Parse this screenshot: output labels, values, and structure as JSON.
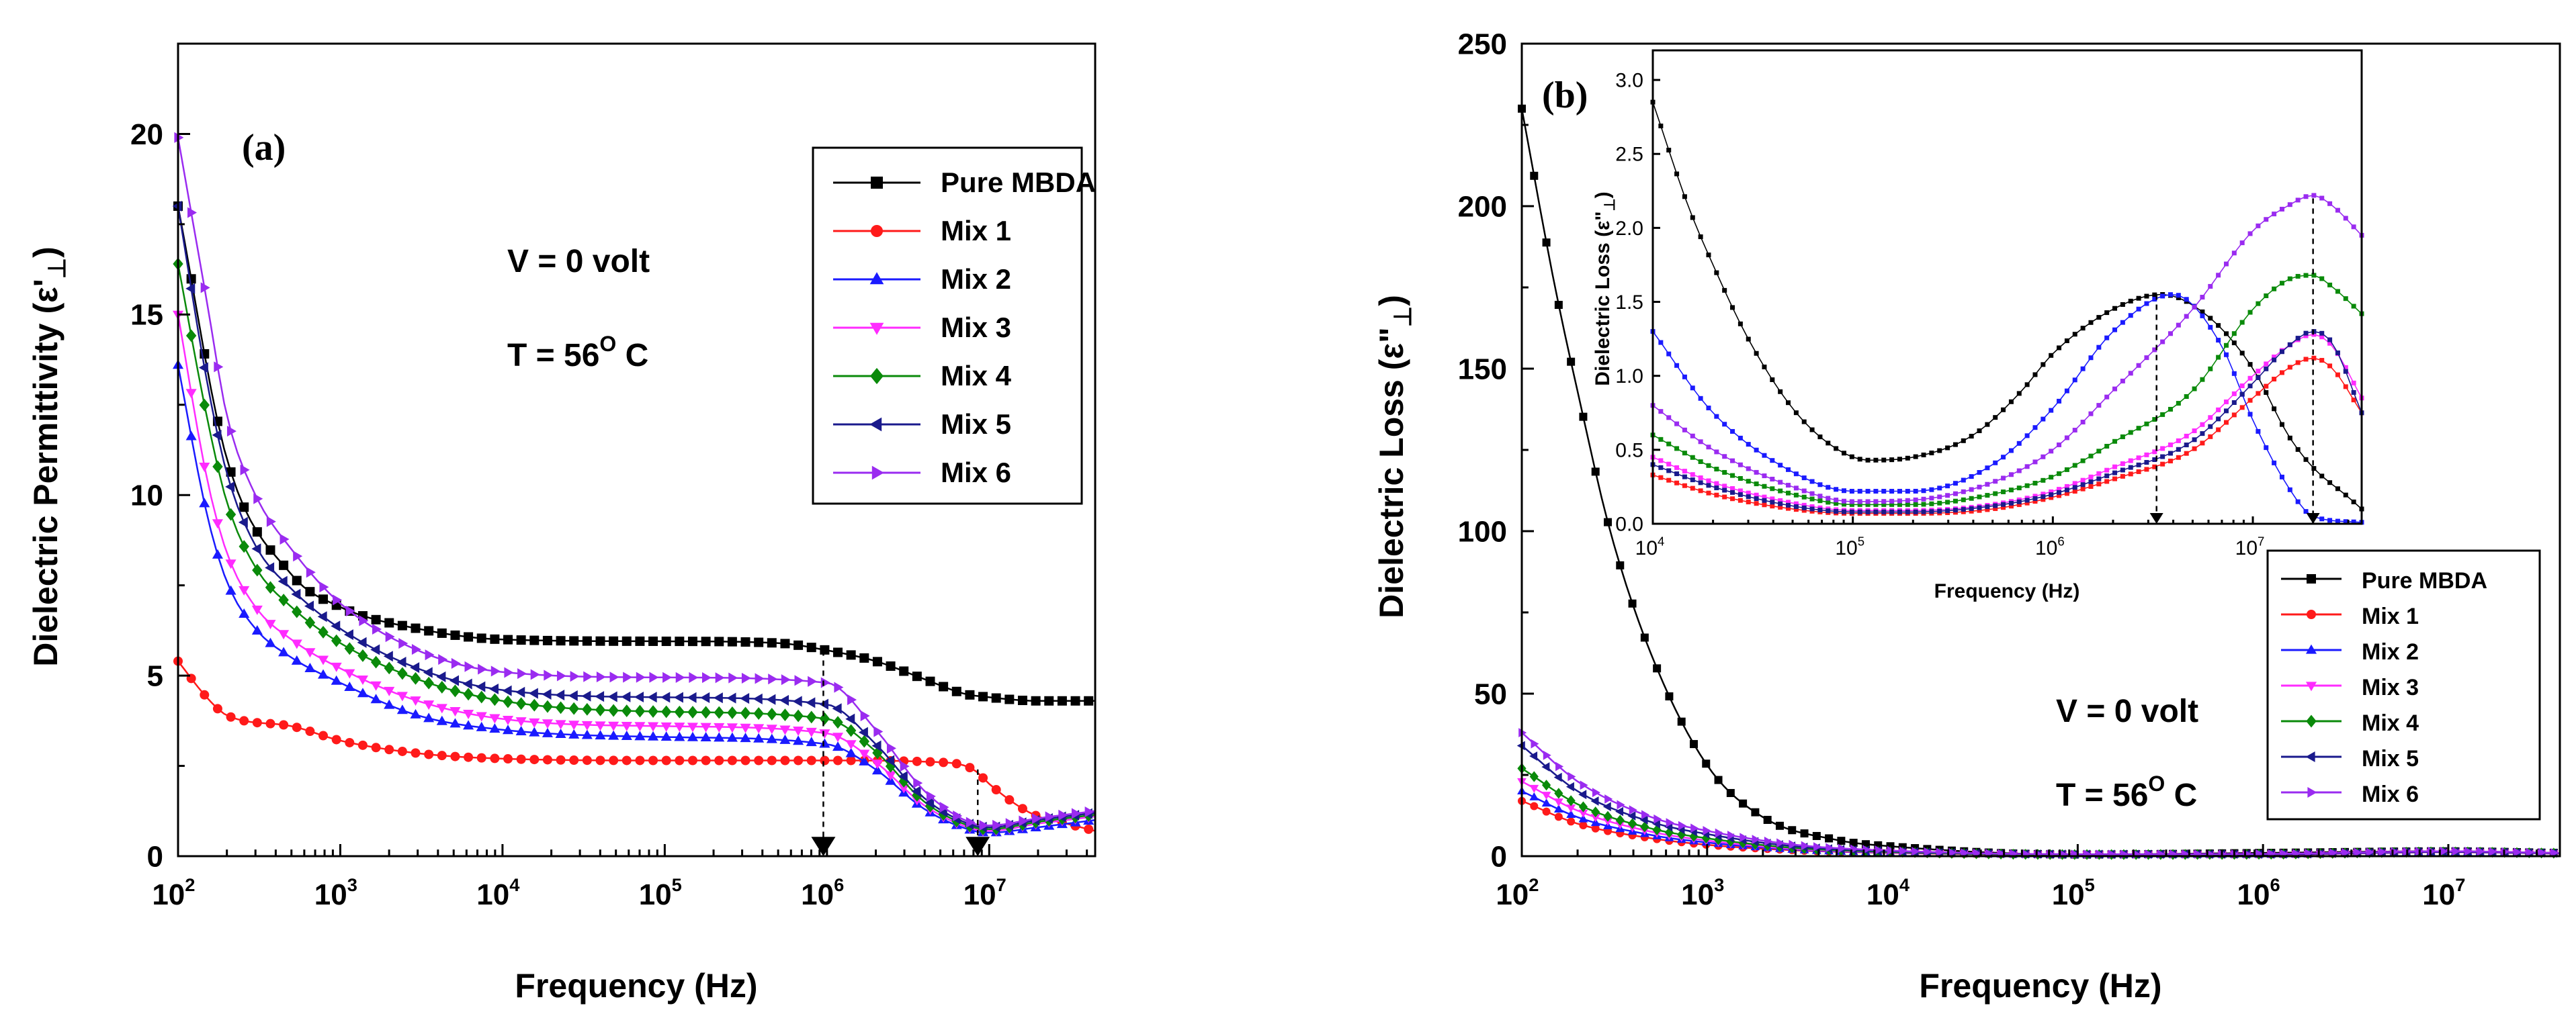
{
  "colors": {
    "pure": "#000000",
    "mix1": "#ff1a1a",
    "mix2": "#1a1aff",
    "mix3": "#ff2bff",
    "mix4": "#0a8a0a",
    "mix5": "#1a1a8c",
    "mix6": "#9a2bf0"
  },
  "chart_data": [
    {
      "id": "a",
      "type": "line",
      "panel_label": "(a)",
      "title": "",
      "xlabel": "Frequency (Hz)",
      "ylabel_main": "Dielectric Permittivity (ε'",
      "ylabel_sub": "⊥",
      "ylabel_end": ")",
      "xscale": "log",
      "xlim": [
        100,
        45000000
      ],
      "ylim": [
        0,
        22.5
      ],
      "yticks": [
        "0",
        "5",
        "10",
        "15",
        "20"
      ],
      "xticks_base": [
        "10",
        "10",
        "10",
        "10",
        "10",
        "10"
      ],
      "xticks_exp": [
        "2",
        "3",
        "4",
        "5",
        "6",
        "7"
      ],
      "legend_position": "top-right",
      "annotations": {
        "voltage": "V = 0 volt",
        "temp_main": "T = 56",
        "temp_sup": "O",
        "temp_unit": " C"
      },
      "markers_at_hz": [
        950000,
        8500000
      ],
      "series": [
        {
          "name": "Pure MBDA",
          "marker": "square",
          "color": "#000000",
          "x": [
            100,
            200,
            500,
            1000,
            3000,
            10000,
            100000,
            500000,
            1000000,
            2000000,
            4000000,
            7000000,
            10000000,
            20000000,
            45000000
          ],
          "y": [
            18.0,
            11.0,
            7.8,
            6.9,
            6.3,
            6.0,
            5.95,
            5.9,
            5.7,
            5.4,
            4.9,
            4.5,
            4.4,
            4.3,
            4.3
          ]
        },
        {
          "name": "Mix 1",
          "marker": "circle",
          "color": "#ff1a1a",
          "x": [
            100,
            150,
            200,
            500,
            1000,
            3000,
            10000,
            100000,
            1000000,
            5000000,
            8000000,
            10000000,
            15000000,
            20000000,
            30000000,
            45000000
          ],
          "y": [
            5.4,
            4.4,
            3.9,
            3.6,
            3.2,
            2.85,
            2.7,
            2.65,
            2.65,
            2.6,
            2.4,
            2.0,
            1.4,
            1.1,
            0.9,
            0.7
          ]
        },
        {
          "name": "Mix 2",
          "marker": "triangle-up",
          "color": "#1a1aff",
          "x": [
            100,
            150,
            200,
            300,
            500,
            1000,
            3000,
            10000,
            100000,
            1000000,
            2000000,
            4000000,
            8000000,
            10000000,
            20000000,
            45000000
          ],
          "y": [
            13.6,
            9.5,
            7.6,
            6.3,
            5.5,
            4.8,
            3.9,
            3.5,
            3.3,
            3.1,
            2.4,
            1.3,
            0.7,
            0.65,
            0.8,
            1.0
          ]
        },
        {
          "name": "Mix 3",
          "marker": "triangle-down",
          "color": "#ff2bff",
          "x": [
            100,
            150,
            200,
            300,
            500,
            1000,
            3000,
            10000,
            100000,
            1000000,
            2000000,
            4000000,
            8000000,
            10000000,
            20000000,
            45000000
          ],
          "y": [
            15.0,
            10.5,
            8.4,
            6.9,
            6.0,
            5.2,
            4.3,
            3.8,
            3.6,
            3.4,
            2.6,
            1.4,
            0.75,
            0.7,
            0.9,
            1.1
          ]
        },
        {
          "name": "Mix 4",
          "marker": "diamond",
          "color": "#0a8a0a",
          "x": [
            100,
            150,
            200,
            300,
            500,
            1000,
            3000,
            10000,
            100000,
            1000000,
            2000000,
            4000000,
            8000000,
            10000000,
            20000000,
            45000000
          ],
          "y": [
            16.4,
            12.2,
            9.8,
            8.0,
            6.9,
            5.9,
            4.9,
            4.3,
            4.0,
            3.8,
            2.9,
            1.5,
            0.8,
            0.75,
            0.95,
            1.15
          ]
        },
        {
          "name": "Mix 5",
          "marker": "triangle-left",
          "color": "#1a1a8c",
          "x": [
            100,
            150,
            200,
            300,
            500,
            1000,
            3000,
            10000,
            100000,
            1000000,
            2000000,
            4000000,
            8000000,
            10000000,
            20000000,
            45000000
          ],
          "y": [
            18.0,
            13.2,
            10.6,
            8.6,
            7.4,
            6.3,
            5.2,
            4.6,
            4.4,
            4.2,
            3.1,
            1.6,
            0.85,
            0.8,
            1.0,
            1.2
          ]
        },
        {
          "name": "Mix 6",
          "marker": "triangle-right",
          "color": "#9a2bf0",
          "x": [
            100,
            150,
            200,
            300,
            500,
            1000,
            3000,
            10000,
            100000,
            1000000,
            2000000,
            4000000,
            8000000,
            10000000,
            20000000,
            45000000
          ],
          "y": [
            19.9,
            15.4,
            12.2,
            10.0,
            8.5,
            7.0,
            5.7,
            5.1,
            4.95,
            4.8,
            3.5,
            1.8,
            0.9,
            0.85,
            1.05,
            1.25
          ]
        }
      ]
    },
    {
      "id": "b",
      "type": "line",
      "panel_label": "(b)",
      "title": "",
      "xlabel": "Frequency (Hz)",
      "ylabel_main": "Dielectric Loss (ε\"",
      "ylabel_sub": "⊥",
      "ylabel_end": ")",
      "xscale": "log",
      "xlim": [
        100,
        40000000
      ],
      "ylim": [
        0,
        250
      ],
      "yticks": [
        "0",
        "50",
        "100",
        "150",
        "200",
        "250"
      ],
      "xticks_base": [
        "10",
        "10",
        "10",
        "10",
        "10",
        "10"
      ],
      "xticks_exp": [
        "2",
        "3",
        "4",
        "5",
        "6",
        "7"
      ],
      "legend_position": "bottom-right",
      "annotations": {
        "voltage": "V = 0 volt",
        "temp_main": "T = 56",
        "temp_sup": "O",
        "temp_unit": " C"
      },
      "series": [
        {
          "name": "Pure MBDA",
          "marker": "square",
          "color": "#000000",
          "x": [
            100,
            150,
            200,
            300,
            500,
            1000,
            2000,
            5000,
            10000,
            100000,
            1000000,
            10000000,
            40000000
          ],
          "y": [
            230,
            176,
            143,
            100,
            62,
            28,
            12,
            5,
            3,
            0.5,
            1.0,
            1.5,
            1.0
          ]
        },
        {
          "name": "Mix 1",
          "marker": "circle",
          "color": "#ff1a1a",
          "x": [
            100,
            200,
            500,
            1000,
            3000,
            10000,
            100000,
            1000000,
            10000000,
            40000000
          ],
          "y": [
            17,
            10,
            5.5,
            3.5,
            1.8,
            1.0,
            0.5,
            0.5,
            1.2,
            0.8
          ]
        },
        {
          "name": "Mix 2",
          "marker": "triangle-up",
          "color": "#1a1aff",
          "x": [
            100,
            200,
            500,
            1000,
            3000,
            10000,
            100000,
            1000000,
            10000000,
            40000000
          ],
          "y": [
            20,
            12,
            6.5,
            4.2,
            2.0,
            1.1,
            0.5,
            0.5,
            1.2,
            0.8
          ]
        },
        {
          "name": "Mix 3",
          "marker": "triangle-down",
          "color": "#ff2bff",
          "x": [
            100,
            200,
            500,
            1000,
            3000,
            10000,
            100000,
            1000000,
            10000000,
            40000000
          ],
          "y": [
            23,
            14,
            7.5,
            4.8,
            2.2,
            1.2,
            0.5,
            0.5,
            1.2,
            0.8
          ]
        },
        {
          "name": "Mix 4",
          "marker": "diamond",
          "color": "#0a8a0a",
          "x": [
            100,
            200,
            500,
            1000,
            3000,
            10000,
            100000,
            1000000,
            10000000,
            40000000
          ],
          "y": [
            27,
            16,
            8.5,
            5.5,
            2.5,
            1.3,
            0.5,
            0.6,
            1.3,
            0.9
          ]
        },
        {
          "name": "Mix 5",
          "marker": "triangle-left",
          "color": "#1a1a8c",
          "x": [
            100,
            200,
            500,
            1000,
            3000,
            10000,
            100000,
            1000000,
            10000000,
            40000000
          ],
          "y": [
            34,
            20,
            10.5,
            6.8,
            3.0,
            1.5,
            0.6,
            0.6,
            1.3,
            0.9
          ]
        },
        {
          "name": "Mix 6",
          "marker": "triangle-right",
          "color": "#9a2bf0",
          "x": [
            100,
            200,
            500,
            1000,
            3000,
            10000,
            100000,
            1000000,
            10000000,
            40000000
          ],
          "y": [
            38,
            23,
            12,
            7.8,
            3.5,
            1.7,
            0.6,
            0.7,
            1.5,
            1.0
          ]
        }
      ]
    },
    {
      "id": "b-inset",
      "type": "line",
      "title": "",
      "xlabel": "Frequency (Hz)",
      "ylabel_main": "Dielectric Loss (ε\"",
      "ylabel_sub": "⊥",
      "ylabel_end": ")",
      "xscale": "log",
      "xlim": [
        10000,
        35000000
      ],
      "ylim": [
        0,
        3.2
      ],
      "yticks": [
        "0.0",
        "0.5",
        "1.0",
        "1.5",
        "2.0",
        "2.5",
        "3.0"
      ],
      "xticks_base": [
        "10",
        "10",
        "10",
        "10"
      ],
      "xticks_exp": [
        "4",
        "5",
        "6",
        "7"
      ],
      "markers_at_hz": [
        3300000,
        20000000
      ],
      "series": [
        {
          "name": "Pure MBDA",
          "color": "#000000",
          "x": [
            10000,
            15000,
            20000,
            30000,
            50000,
            80000,
            120000,
            200000,
            400000,
            700000,
            1000000,
            2000000,
            3500000,
            6000000,
            10000000,
            15000000,
            20000000,
            30000000,
            35000000
          ],
          "y": [
            2.85,
            2.15,
            1.75,
            1.25,
            0.78,
            0.52,
            0.43,
            0.45,
            0.6,
            0.9,
            1.15,
            1.45,
            1.55,
            1.4,
            1.05,
            0.6,
            0.38,
            0.18,
            0.1
          ]
        },
        {
          "name": "Mix 1",
          "color": "#ff1a1a",
          "x": [
            10000,
            20000,
            50000,
            100000,
            200000,
            500000,
            1000000,
            2000000,
            5000000,
            10000000,
            15000000,
            20000000,
            25000000,
            35000000
          ],
          "y": [
            0.33,
            0.2,
            0.1,
            0.07,
            0.07,
            0.1,
            0.18,
            0.3,
            0.5,
            0.85,
            1.05,
            1.12,
            1.05,
            0.75
          ]
        },
        {
          "name": "Mix 2",
          "color": "#1a1aff",
          "x": [
            10000,
            20000,
            50000,
            100000,
            200000,
            500000,
            1000000,
            2000000,
            4000000,
            7000000,
            10000000,
            15000000,
            20000000,
            35000000
          ],
          "y": [
            1.3,
            0.75,
            0.35,
            0.22,
            0.22,
            0.4,
            0.78,
            1.3,
            1.55,
            1.2,
            0.7,
            0.25,
            0.05,
            0.01
          ]
        },
        {
          "name": "Mix 3",
          "color": "#ff2bff",
          "x": [
            10000,
            20000,
            50000,
            100000,
            200000,
            500000,
            1000000,
            2000000,
            5000000,
            10000000,
            15000000,
            20000000,
            25000000,
            35000000
          ],
          "y": [
            0.45,
            0.28,
            0.14,
            0.09,
            0.09,
            0.13,
            0.22,
            0.38,
            0.62,
            1.0,
            1.2,
            1.28,
            1.2,
            0.85
          ]
        },
        {
          "name": "Mix 4",
          "color": "#0a8a0a",
          "x": [
            10000,
            20000,
            50000,
            100000,
            200000,
            500000,
            1000000,
            2000000,
            5000000,
            10000000,
            15000000,
            20000000,
            25000000,
            35000000
          ],
          "y": [
            0.6,
            0.38,
            0.2,
            0.13,
            0.13,
            0.2,
            0.32,
            0.55,
            0.9,
            1.45,
            1.65,
            1.68,
            1.6,
            1.42
          ]
        },
        {
          "name": "Mix 5",
          "color": "#1a1a8c",
          "x": [
            10000,
            20000,
            50000,
            100000,
            200000,
            500000,
            1000000,
            2000000,
            5000000,
            10000000,
            15000000,
            20000000,
            25000000,
            35000000
          ],
          "y": [
            0.4,
            0.25,
            0.12,
            0.08,
            0.08,
            0.12,
            0.2,
            0.34,
            0.56,
            0.95,
            1.2,
            1.3,
            1.22,
            0.75
          ]
        },
        {
          "name": "Mix 6",
          "color": "#9a2bf0",
          "x": [
            10000,
            20000,
            50000,
            100000,
            200000,
            500000,
            1000000,
            2000000,
            5000000,
            10000000,
            15000000,
            20000000,
            25000000,
            35000000
          ],
          "y": [
            0.8,
            0.5,
            0.25,
            0.15,
            0.16,
            0.28,
            0.5,
            0.9,
            1.45,
            1.98,
            2.15,
            2.22,
            2.15,
            1.95
          ]
        }
      ]
    }
  ]
}
